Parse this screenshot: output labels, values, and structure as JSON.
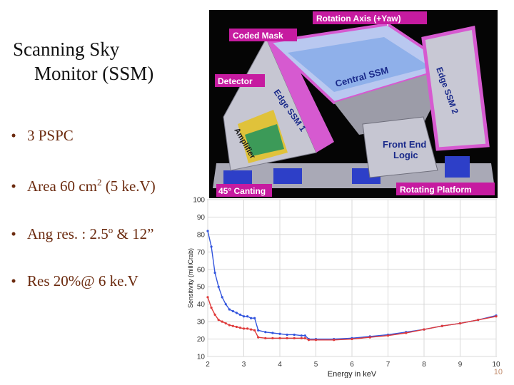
{
  "slide": {
    "title_line1": "Scanning Sky",
    "title_line2": "Monitor (SSM)",
    "bullets": [
      {
        "marker": "•",
        "text": "3 PSPC"
      },
      {
        "marker": "•",
        "text": "Area 60 cm",
        "sup": "2",
        "tail": " (5 ke.V)"
      },
      {
        "marker": "•",
        "text": "Ang res. : 2.5",
        "sup": "o",
        "tail": "  & 12”"
      },
      {
        "marker": "•",
        "text": "Res 20%@ 6 ke.V"
      }
    ],
    "page_number": "10"
  },
  "instrument_image": {
    "labels": {
      "rotation_axis": "Rotation Axis (+Yaw)",
      "coded_mask": "Coded Mask",
      "detector": "Detector",
      "central_ssm": "Central SSM",
      "edge_ssm_2": "Edge SSM 2",
      "edge_ssm_1": "Edge SSM 1",
      "amplifier": "Amplifier",
      "front_end_logic_1": "Front End",
      "front_end_logic_2": "Logic",
      "canting": "45° Canting",
      "rotating_platform": "Rotating Platform"
    },
    "colors": {
      "label_bg": "#c61ba0",
      "body": "#b8b8c4",
      "mask": "#d65ad0",
      "panel": "#2d3fc8"
    }
  },
  "chart_data": {
    "type": "line",
    "xlabel": "Energy in keV",
    "ylabel": "Sensitivity (milliCrab)",
    "xlim": [
      2,
      10
    ],
    "ylim": [
      10,
      100
    ],
    "x_ticks": [
      "2",
      "3",
      "4",
      "5",
      "6",
      "7",
      "8",
      "9",
      "10"
    ],
    "y_ticks": [
      "10",
      "20",
      "30",
      "40",
      "50",
      "60",
      "70",
      "80",
      "90",
      "100"
    ],
    "grid": true,
    "series": [
      {
        "color": "#3355dd",
        "x": [
          2.0,
          2.1,
          2.2,
          2.3,
          2.4,
          2.5,
          2.6,
          2.7,
          2.8,
          2.9,
          3.0,
          3.1,
          3.2,
          3.3,
          3.4,
          3.6,
          3.8,
          4.0,
          4.2,
          4.4,
          4.6,
          4.7,
          4.8,
          5.0,
          5.5,
          6.0,
          6.5,
          7.0,
          7.5,
          8.0,
          8.5,
          9.0,
          9.5,
          10.0
        ],
        "y": [
          82,
          73,
          58,
          50,
          44,
          40,
          37,
          36,
          35,
          34,
          33,
          33,
          32,
          32,
          25,
          24,
          23.5,
          23,
          22.5,
          22.5,
          22,
          22,
          20,
          20,
          20,
          20.5,
          21.5,
          22.5,
          24,
          25.5,
          27.5,
          29,
          31,
          33.5
        ]
      },
      {
        "color": "#e03a3a",
        "x": [
          2.0,
          2.1,
          2.2,
          2.3,
          2.4,
          2.5,
          2.6,
          2.7,
          2.8,
          2.9,
          3.0,
          3.1,
          3.2,
          3.3,
          3.4,
          3.6,
          3.8,
          4.0,
          4.2,
          4.4,
          4.6,
          4.7,
          4.8,
          5.0,
          5.5,
          6.0,
          6.5,
          7.0,
          7.5,
          8.0,
          8.5,
          9.0,
          9.5,
          10.0
        ],
        "y": [
          44,
          38,
          34,
          31,
          30,
          29,
          28,
          27.5,
          27,
          26.5,
          26,
          26,
          25.5,
          25,
          21,
          20.5,
          20.5,
          20.5,
          20.5,
          20.5,
          20.5,
          20.5,
          19.5,
          19.5,
          19.5,
          20,
          21,
          22,
          23.5,
          25.5,
          27.5,
          29,
          31,
          33
        ]
      }
    ]
  }
}
